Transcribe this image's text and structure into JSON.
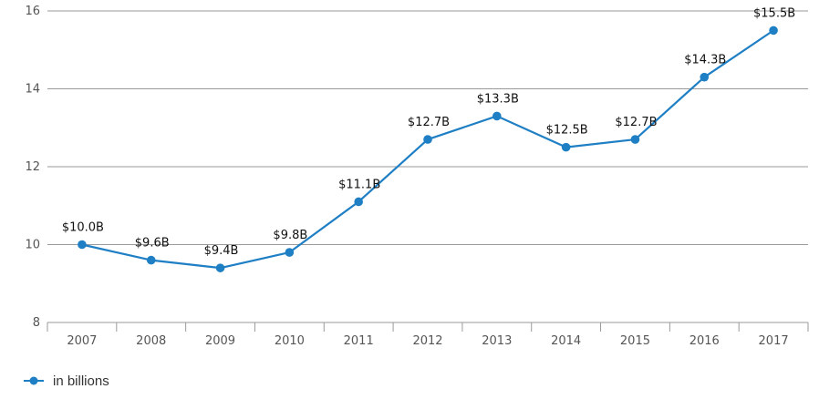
{
  "chart_data": {
    "type": "line",
    "categories": [
      "2007",
      "2008",
      "2009",
      "2010",
      "2011",
      "2012",
      "2013",
      "2014",
      "2015",
      "2016",
      "2017"
    ],
    "series": [
      {
        "name": "in billions",
        "values": [
          10.0,
          9.6,
          9.4,
          9.8,
          11.1,
          12.7,
          13.3,
          12.5,
          12.7,
          14.3,
          15.5
        ],
        "labels": [
          "$10.0B",
          "$9.6B",
          "$9.4B",
          "$9.8B",
          "$11.1B",
          "$12.7B",
          "$13.3B",
          "$12.5B",
          "$12.7B",
          "$14.3B",
          "$15.5B"
        ],
        "color": "#1f7fc4"
      }
    ],
    "ylim": [
      8,
      16
    ],
    "yticks": [
      "8",
      "10",
      "12",
      "14",
      "16"
    ],
    "grid": true,
    "legend_position": "bottom-left"
  }
}
